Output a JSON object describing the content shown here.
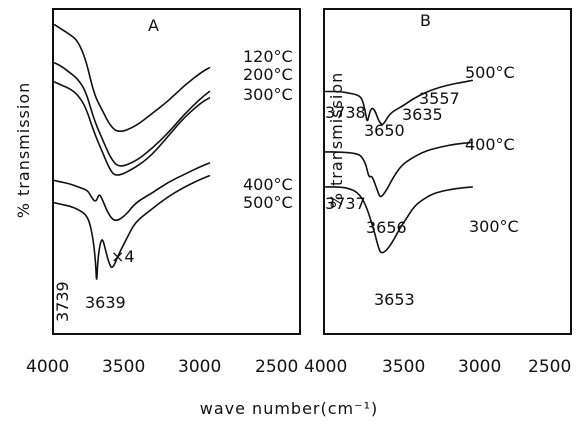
{
  "chart_data": {
    "type": "line",
    "ylabel": "% transmission",
    "xlabel": "wave number(cm⁻¹)",
    "panels": [
      {
        "name": "A",
        "xlim": [
          4000,
          2500
        ],
        "xticks": [
          "4000",
          "3500",
          "3000",
          "2500"
        ],
        "series": [
          {
            "name": "120°C",
            "points": [
              [
                3990,
                96
              ],
              [
                3960,
                95
              ],
              [
                3900,
                93
              ],
              [
                3850,
                91
              ],
              [
                3800,
                85
              ],
              [
                3750,
                74
              ],
              [
                3700,
                69
              ],
              [
                3650,
                64
              ],
              [
                3600,
                62
              ],
              [
                3500,
                64
              ],
              [
                3400,
                68
              ],
              [
                3300,
                72
              ],
              [
                3200,
                77
              ],
              [
                3100,
                81
              ],
              [
                3050,
                82.5
              ]
            ]
          },
          {
            "name": "200°C",
            "points": [
              [
                3990,
                84
              ],
              [
                3950,
                83
              ],
              [
                3900,
                81
              ],
              [
                3850,
                79
              ],
              [
                3800,
                75
              ],
              [
                3750,
                66
              ],
              [
                3700,
                60
              ],
              [
                3650,
                54
              ],
              [
                3600,
                51
              ],
              [
                3500,
                53
              ],
              [
                3400,
                57
              ],
              [
                3300,
                62
              ],
              [
                3200,
                68
              ],
              [
                3100,
                73
              ],
              [
                3050,
                75
              ]
            ]
          },
          {
            "name": "300°C",
            "points": [
              [
                3990,
                78
              ],
              [
                3950,
                77
              ],
              [
                3900,
                76
              ],
              [
                3850,
                74
              ],
              [
                3800,
                70
              ],
              [
                3750,
                62
              ],
              [
                3700,
                56
              ],
              [
                3660,
                51
              ],
              [
                3620,
                48
              ],
              [
                3500,
                51
              ],
              [
                3400,
                55
              ],
              [
                3300,
                61
              ],
              [
                3200,
                67
              ],
              [
                3100,
                71.5
              ],
              [
                3050,
                73
              ]
            ]
          },
          {
            "name": "400°C",
            "points": [
              [
                3990,
                47
              ],
              [
                3950,
                46.5
              ],
              [
                3900,
                46
              ],
              [
                3850,
                45
              ],
              [
                3790,
                44
              ],
              [
                3770,
                42
              ],
              [
                3740,
                40
              ],
              [
                3720,
                43
              ],
              [
                3700,
                41
              ],
              [
                3660,
                36
              ],
              [
                3620,
                34
              ],
              [
                3560,
                36
              ],
              [
                3500,
                40
              ],
              [
                3400,
                43
              ],
              [
                3300,
                46.5
              ],
              [
                3200,
                49
              ],
              [
                3100,
                51.5
              ],
              [
                3050,
                52.5
              ]
            ]
          },
          {
            "name": "500°C",
            "points": [
              [
                3990,
                40
              ],
              [
                3950,
                39.5
              ],
              [
                3900,
                39
              ],
              [
                3850,
                38
              ],
              [
                3790,
                36
              ],
              [
                3760,
                30
              ],
              [
                3742,
                22
              ],
              [
                3735,
                14
              ],
              [
                3728,
                22
              ],
              [
                3715,
                27
              ],
              [
                3700,
                29
              ],
              [
                3680,
                25
              ],
              [
                3660,
                21
              ],
              [
                3639,
                19
              ],
              [
                3600,
                24
              ],
              [
                3550,
                29
              ],
              [
                3500,
                34
              ],
              [
                3400,
                38
              ],
              [
                3300,
                42
              ],
              [
                3200,
                45
              ],
              [
                3100,
                47.5
              ],
              [
                3050,
                48.5
              ]
            ]
          }
        ],
        "annotations": [
          "×4",
          "3739",
          "3639"
        ]
      },
      {
        "name": "B",
        "xlim": [
          4000,
          2500
        ],
        "xticks": [
          "4000",
          "3500",
          "3000",
          "2500"
        ],
        "series": [
          {
            "name": "500°C",
            "points": [
              [
                3990,
                75
              ],
              [
                3900,
                75
              ],
              [
                3850,
                74.5
              ],
              [
                3800,
                74
              ],
              [
                3770,
                73
              ],
              [
                3750,
                69
              ],
              [
                3738,
                65
              ],
              [
                3725,
                68
              ],
              [
                3710,
                70
              ],
              [
                3690,
                69
              ],
              [
                3670,
                66
              ],
              [
                3650,
                64.5
              ],
              [
                3635,
                65
              ],
              [
                3600,
                68
              ],
              [
                3557,
                69.5
              ],
              [
                3520,
                70.5
              ],
              [
                3450,
                73
              ],
              [
                3350,
                75.5
              ],
              [
                3250,
                77
              ],
              [
                3150,
                78
              ],
              [
                3100,
                78.5
              ]
            ]
          },
          {
            "name": "400°C",
            "points": [
              [
                3990,
                56
              ],
              [
                3900,
                56
              ],
              [
                3800,
                55.5
              ],
              [
                3770,
                54.5
              ],
              [
                3745,
                52
              ],
              [
                3737,
                50
              ],
              [
                3725,
                48
              ],
              [
                3710,
                48.5
              ],
              [
                3690,
                46
              ],
              [
                3670,
                43
              ],
              [
                3656,
                41.5
              ],
              [
                3620,
                44
              ],
              [
                3580,
                48
              ],
              [
                3540,
                51
              ],
              [
                3500,
                53
              ],
              [
                3400,
                56
              ],
              [
                3300,
                57.5
              ],
              [
                3200,
                58.5
              ],
              [
                3100,
                59
              ]
            ]
          },
          {
            "name": "300°C",
            "points": [
              [
                3990,
                45
              ],
              [
                3900,
                45
              ],
              [
                3850,
                44.5
              ],
              [
                3800,
                43.5
              ],
              [
                3750,
                40
              ],
              [
                3700,
                32
              ],
              [
                3670,
                26
              ],
              [
                3653,
                24
              ],
              [
                3620,
                25
              ],
              [
                3580,
                28
              ],
              [
                3540,
                32
              ],
              [
                3500,
                35
              ],
              [
                3450,
                39
              ],
              [
                3400,
                41
              ],
              [
                3350,
                42.5
              ],
              [
                3300,
                43.5
              ],
              [
                3200,
                44.5
              ],
              [
                3100,
                45
              ]
            ]
          }
        ],
        "annotations": [
          "3738",
          "3650",
          "3635",
          "3557",
          "3737",
          "3656",
          "3653"
        ]
      }
    ]
  }
}
